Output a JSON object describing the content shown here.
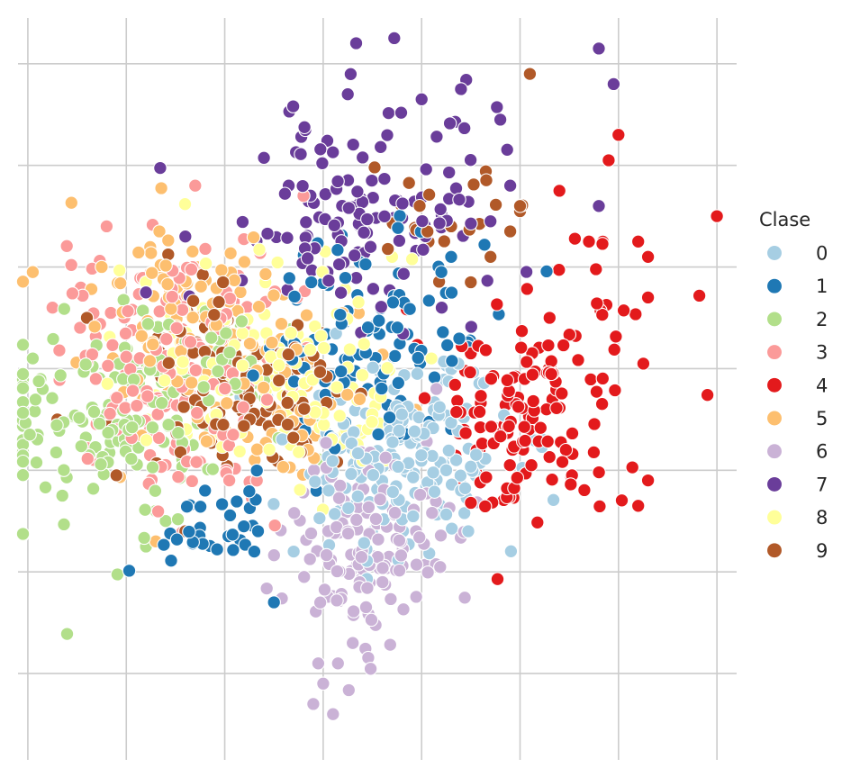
{
  "chart_data": {
    "type": "scatter",
    "xlim": [
      -1.5,
      5.8
    ],
    "ylim": [
      -3.7,
      3.6
    ],
    "xticks": [
      -1.4,
      -0.4,
      0.6,
      1.6,
      2.6,
      3.6,
      4.6,
      5.6
    ],
    "yticks": [
      -2.85,
      -1.85,
      -0.85,
      0.15,
      1.15,
      2.15,
      3.15
    ],
    "grid": true,
    "legend": {
      "title": "Clase",
      "placement": "right",
      "entries": [
        "0",
        "1",
        "2",
        "3",
        "4",
        "5",
        "6",
        "7",
        "8",
        "9"
      ]
    },
    "series": [
      {
        "name": "0",
        "color": "#a6cee3",
        "clusters": [
          {
            "cx": 2.5,
            "cy": -0.65,
            "sx": 0.5,
            "sy": 0.45,
            "n": 150
          },
          {
            "cx": 1.8,
            "cy": -0.95,
            "sx": 0.3,
            "sy": 0.4,
            "n": 30
          }
        ],
        "points": [
          [
            1.3,
            -1.65
          ],
          [
            2.85,
            -0.85
          ],
          [
            3.0,
            -1.05
          ],
          [
            2.4,
            -0.3
          ]
        ]
      },
      {
        "name": "1",
        "color": "#1f78b4",
        "clusters": [
          {
            "cx": 2.1,
            "cy": 0.45,
            "sx": 0.55,
            "sy": 0.45,
            "n": 110
          },
          {
            "cx": 0.4,
            "cy": -1.45,
            "sx": 0.35,
            "sy": 0.25,
            "n": 32
          }
        ],
        "points": [
          [
            1.1,
            -2.15
          ],
          [
            0.9,
            -1.65
          ],
          [
            2.9,
            1.25
          ],
          [
            2.8,
            1.1
          ]
        ]
      },
      {
        "name": "2",
        "color": "#b2df8a",
        "clusters": [
          {
            "cx": -0.6,
            "cy": -0.45,
            "sx": 0.7,
            "sy": 0.5,
            "n": 140
          },
          {
            "cx": 0.6,
            "cy": 0.1,
            "sx": 0.5,
            "sy": 0.4,
            "n": 35
          }
        ],
        "points": [
          [
            -1.35,
            0.25
          ],
          [
            -1.05,
            -1.1
          ],
          [
            -0.2,
            -1.6
          ],
          [
            -1.3,
            -0.5
          ],
          [
            -0.1,
            -1.25
          ],
          [
            0.0,
            -1.35
          ]
        ]
      },
      {
        "name": "3",
        "color": "#fb9a99",
        "clusters": [
          {
            "cx": 0.0,
            "cy": 0.3,
            "sx": 0.6,
            "sy": 0.55,
            "n": 150
          },
          {
            "cx": 0.3,
            "cy": -0.85,
            "sx": 0.4,
            "sy": 0.25,
            "n": 25
          }
        ],
        "points": [
          [
            0.3,
            1.95
          ],
          [
            -0.6,
            1.55
          ],
          [
            -1.15,
            0.75
          ],
          [
            1.4,
            1.85
          ]
        ]
      },
      {
        "name": "4",
        "color": "#e31a1c",
        "clusters": [
          {
            "cx": 3.6,
            "cy": -0.35,
            "sx": 0.5,
            "sy": 0.5,
            "n": 130
          },
          {
            "cx": 4.3,
            "cy": 0.6,
            "sx": 0.6,
            "sy": 0.5,
            "n": 20
          }
        ],
        "points": [
          [
            5.6,
            1.65
          ],
          [
            4.8,
            1.4
          ],
          [
            4.9,
            -0.95
          ],
          [
            4.8,
            -1.2
          ],
          [
            4.3,
            1.4
          ],
          [
            4.6,
            2.45
          ],
          [
            4.5,
            2.2
          ],
          [
            4.9,
            0.85
          ],
          [
            4.9,
            1.25
          ],
          [
            3.9,
            0.65
          ],
          [
            3.1,
            0.3
          ],
          [
            4.0,
            1.9
          ]
        ]
      },
      {
        "name": "5",
        "color": "#fdbf6f",
        "clusters": [
          {
            "cx": 0.3,
            "cy": 0.55,
            "sx": 0.6,
            "sy": 0.5,
            "n": 110
          },
          {
            "cx": 1.3,
            "cy": -0.2,
            "sx": 0.6,
            "sy": 0.45,
            "n": 40
          }
        ],
        "points": [
          [
            -0.65,
            1.15
          ],
          [
            -1.35,
            1.1
          ],
          [
            -0.1,
            -1.55
          ],
          [
            0.8,
            1.2
          ]
        ]
      },
      {
        "name": "6",
        "color": "#cab2d6",
        "clusters": [
          {
            "cx": 2.0,
            "cy": -1.6,
            "sx": 0.4,
            "sy": 0.45,
            "n": 140
          }
        ],
        "points": [
          [
            1.6,
            -2.95
          ],
          [
            1.75,
            -2.75
          ],
          [
            1.9,
            -2.55
          ],
          [
            1.55,
            -2.75
          ],
          [
            1.5,
            -3.15
          ],
          [
            1.7,
            -3.25
          ],
          [
            2.75,
            -0.05
          ]
        ]
      },
      {
        "name": "7",
        "color": "#6a3d9a",
        "clusters": [
          {
            "cx": 1.9,
            "cy": 1.55,
            "sx": 0.65,
            "sy": 0.45,
            "n": 110
          },
          {
            "cx": 2.5,
            "cy": 2.5,
            "sx": 0.6,
            "sy": 0.45,
            "n": 20
          }
        ],
        "points": [
          [
            4.4,
            3.3
          ],
          [
            4.55,
            2.95
          ],
          [
            2.6,
            2.8
          ],
          [
            3.0,
            2.9
          ],
          [
            3.4,
            2.6
          ],
          [
            3.5,
            1.95
          ],
          [
            3.3,
            1.6
          ],
          [
            4.4,
            1.75
          ],
          [
            1.85,
            2.85
          ],
          [
            1.25,
            1.95
          ],
          [
            0.2,
            1.45
          ],
          [
            -0.2,
            0.9
          ]
        ]
      },
      {
        "name": "8",
        "color": "#ffff99",
        "clusters": [
          {
            "cx": 1.0,
            "cy": 0.2,
            "sx": 0.6,
            "sy": 0.5,
            "n": 120
          },
          {
            "cx": 1.9,
            "cy": -0.3,
            "sx": 0.4,
            "sy": 0.4,
            "n": 20
          }
        ],
        "points": [
          [
            -0.2,
            1.0
          ],
          [
            2.3,
            1.25
          ],
          [
            2.7,
            0.25
          ],
          [
            2.1,
            -0.3
          ]
        ]
      },
      {
        "name": "9",
        "color": "#b15928",
        "clusters": [
          {
            "cx": 0.7,
            "cy": 0.0,
            "sx": 0.6,
            "sy": 0.45,
            "n": 110
          },
          {
            "cx": 2.7,
            "cy": 1.55,
            "sx": 0.5,
            "sy": 0.35,
            "n": 22
          }
        ],
        "points": [
          [
            3.7,
            3.05
          ],
          [
            3.6,
            1.75
          ],
          [
            3.6,
            1.7
          ],
          [
            3.5,
            1.5
          ],
          [
            3.1,
            1.0
          ],
          [
            3.3,
            1.25
          ],
          [
            2.9,
            1.55
          ],
          [
            0.0,
            0.45
          ],
          [
            -1.1,
            -0.35
          ],
          [
            -0.5,
            -0.9
          ],
          [
            0.2,
            -1.45
          ],
          [
            -0.8,
            0.65
          ]
        ]
      }
    ]
  }
}
